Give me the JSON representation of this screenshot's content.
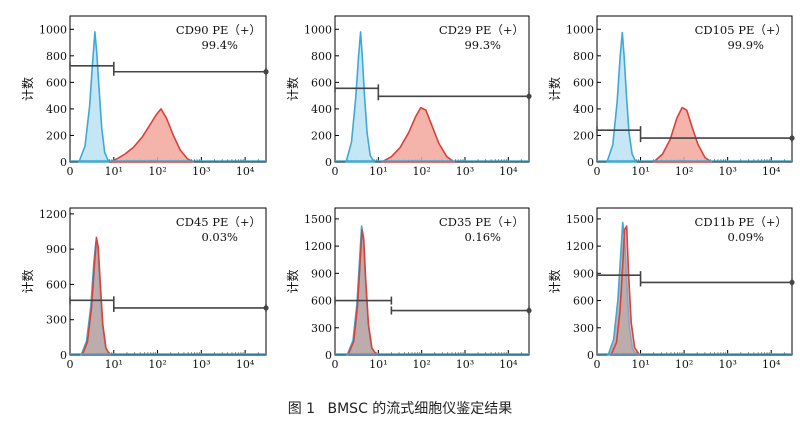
{
  "caption": {
    "fig_label": "图 1",
    "text": "BMSC 的流式细胞仪鉴定结果"
  },
  "colors": {
    "isotype_line": "#3fa9d6",
    "isotype_fill": "#bfe3f4",
    "positive_line": "#d9413a",
    "positive_fill": "#f2a79d",
    "overlay_fill": "#b8a7a7",
    "gate": "#444444",
    "axis": "#000000"
  },
  "chart_data": [
    {
      "type": "area",
      "title": "CD90 PE（+）",
      "percent": "99.4%",
      "ylabel": "计数",
      "yticks": [
        0,
        200,
        400,
        600,
        800,
        1000
      ],
      "ylim": [
        0,
        1100
      ],
      "xscale": "log",
      "xlim": [
        1,
        30000
      ],
      "xticks": [
        {
          "v": 1,
          "t": "0"
        },
        {
          "v": 10,
          "t": "10¹"
        },
        {
          "v": 100,
          "t": "10²"
        },
        {
          "v": 1000,
          "t": "10³"
        },
        {
          "v": 10000,
          "t": "10⁴"
        }
      ],
      "mode": "separate",
      "series": [
        {
          "role": "isotype",
          "x": [
            1.6,
            2.2,
            2.8,
            3.3,
            3.7,
            4.1,
            4.6,
            5.3,
            6.2,
            7.5,
            9
          ],
          "y": [
            0,
            120,
            420,
            760,
            980,
            820,
            560,
            260,
            70,
            10,
            0
          ]
        },
        {
          "role": "positive",
          "x": [
            8,
            12,
            18,
            28,
            45,
            70,
            95,
            120,
            160,
            230,
            330,
            480,
            650
          ],
          "y": [
            0,
            25,
            60,
            110,
            190,
            290,
            360,
            400,
            330,
            200,
            90,
            25,
            0
          ]
        }
      ],
      "gate_low": {
        "x1": 1,
        "x2": 10,
        "y": 725
      },
      "gate_high": {
        "x1": 10,
        "x2": 30000,
        "y": 680
      }
    },
    {
      "type": "area",
      "title": "CD29 PE（+）",
      "percent": "99.3%",
      "ylabel": "计数",
      "yticks": [
        0,
        200,
        400,
        600,
        800,
        1000
      ],
      "ylim": [
        0,
        1100
      ],
      "xscale": "log",
      "xlim": [
        1,
        30000
      ],
      "xticks": [
        {
          "v": 1,
          "t": "0"
        },
        {
          "v": 10,
          "t": "10¹"
        },
        {
          "v": 100,
          "t": "10²"
        },
        {
          "v": 1000,
          "t": "10³"
        },
        {
          "v": 10000,
          "t": "10⁴"
        }
      ],
      "mode": "separate",
      "series": [
        {
          "role": "isotype",
          "x": [
            1.8,
            2.4,
            3.0,
            3.5,
            3.9,
            4.3,
            4.8,
            5.5,
            6.5,
            8
          ],
          "y": [
            0,
            150,
            480,
            800,
            980,
            780,
            500,
            220,
            50,
            0
          ]
        },
        {
          "role": "positive",
          "x": [
            12,
            20,
            32,
            50,
            72,
            95,
            125,
            170,
            250,
            380,
            560
          ],
          "y": [
            0,
            40,
            110,
            220,
            340,
            410,
            390,
            280,
            140,
            40,
            0
          ]
        }
      ],
      "gate_low": {
        "x1": 1,
        "x2": 10,
        "y": 555
      },
      "gate_high": {
        "x1": 10,
        "x2": 30000,
        "y": 495
      }
    },
    {
      "type": "area",
      "title": "CD105 PE（+）",
      "percent": "99.9%",
      "ylabel": "计数",
      "yticks": [
        0,
        200,
        400,
        600,
        800,
        1000
      ],
      "ylim": [
        0,
        1100
      ],
      "xscale": "log",
      "xlim": [
        1,
        30000
      ],
      "xticks": [
        {
          "v": 1,
          "t": "0"
        },
        {
          "v": 10,
          "t": "10¹"
        },
        {
          "v": 100,
          "t": "10²"
        },
        {
          "v": 1000,
          "t": "10³"
        },
        {
          "v": 10000,
          "t": "10⁴"
        }
      ],
      "mode": "separate",
      "series": [
        {
          "role": "isotype",
          "x": [
            1.7,
            2.3,
            2.9,
            3.4,
            3.8,
            4.2,
            4.7,
            5.4,
            6.4,
            7.8
          ],
          "y": [
            0,
            130,
            450,
            790,
            975,
            800,
            520,
            230,
            60,
            0
          ]
        },
        {
          "role": "positive",
          "x": [
            20,
            32,
            48,
            68,
            90,
            115,
            150,
            210,
            300,
            420
          ],
          "y": [
            0,
            60,
            170,
            330,
            410,
            390,
            270,
            130,
            35,
            0
          ]
        }
      ],
      "gate_low": {
        "x1": 1,
        "x2": 10,
        "y": 240
      },
      "gate_high": {
        "x1": 10,
        "x2": 30000,
        "y": 180
      }
    },
    {
      "type": "area",
      "title": "CD45 PE（+）",
      "percent": "0.03%",
      "ylabel": "计数",
      "yticks": [
        0,
        300,
        600,
        900,
        1200
      ],
      "ylim": [
        0,
        1250
      ],
      "xscale": "log",
      "xlim": [
        1,
        30000
      ],
      "xticks": [
        {
          "v": 1,
          "t": "0"
        },
        {
          "v": 10,
          "t": "10¹"
        },
        {
          "v": 100,
          "t": "10²"
        },
        {
          "v": 1000,
          "t": "10³"
        },
        {
          "v": 10000,
          "t": "10⁴"
        }
      ],
      "mode": "overlay",
      "series": [
        {
          "role": "isotype",
          "x": [
            1.8,
            2.4,
            3.0,
            3.5,
            3.9,
            4.3,
            4.8,
            5.5,
            6.5,
            8
          ],
          "y": [
            0,
            120,
            420,
            780,
            960,
            900,
            600,
            250,
            60,
            0
          ]
        },
        {
          "role": "positive",
          "x": [
            1.9,
            2.5,
            3.1,
            3.6,
            4.0,
            4.4,
            4.9,
            5.6,
            6.6,
            8.2
          ],
          "y": [
            0,
            110,
            400,
            760,
            1000,
            920,
            620,
            260,
            60,
            0
          ]
        }
      ],
      "gate_low": {
        "x1": 1,
        "x2": 10,
        "y": 465
      },
      "gate_high": {
        "x1": 10,
        "x2": 30000,
        "y": 400
      }
    },
    {
      "type": "area",
      "title": "CD35 PE（+）",
      "percent": "0.16%",
      "ylabel": "计数",
      "yticks": [
        0,
        300,
        600,
        900,
        1200,
        1500
      ],
      "ylim": [
        0,
        1620
      ],
      "xscale": "log",
      "xlim": [
        1,
        30000
      ],
      "xticks": [
        {
          "v": 1,
          "t": "0"
        },
        {
          "v": 10,
          "t": "10¹"
        },
        {
          "v": 100,
          "t": "10²"
        },
        {
          "v": 1000,
          "t": "10³"
        },
        {
          "v": 10000,
          "t": "10⁴"
        }
      ],
      "mode": "overlay",
      "series": [
        {
          "role": "isotype",
          "x": [
            1.9,
            2.6,
            3.2,
            3.7,
            4.1,
            4.5,
            5.0,
            5.8,
            7,
            9
          ],
          "y": [
            0,
            160,
            560,
            1050,
            1420,
            1300,
            850,
            350,
            80,
            0
          ]
        },
        {
          "role": "positive",
          "x": [
            2.0,
            2.7,
            3.3,
            3.8,
            4.2,
            4.6,
            5.1,
            5.9,
            7.1,
            9.2
          ],
          "y": [
            0,
            150,
            540,
            1020,
            1380,
            1280,
            830,
            340,
            75,
            0
          ]
        }
      ],
      "gate_low": {
        "x1": 1,
        "x2": 20,
        "y": 600
      },
      "gate_high": {
        "x1": 20,
        "x2": 30000,
        "y": 490
      }
    },
    {
      "type": "area",
      "title": "CD11b PE（+）",
      "percent": "0.09%",
      "ylabel": "计数",
      "yticks": [
        0,
        300,
        600,
        900,
        1200,
        1500
      ],
      "ylim": [
        0,
        1620
      ],
      "xscale": "log",
      "xlim": [
        1,
        30000
      ],
      "xticks": [
        {
          "v": 1,
          "t": "0"
        },
        {
          "v": 10,
          "t": "10¹"
        },
        {
          "v": 100,
          "t": "10²"
        },
        {
          "v": 1000,
          "t": "10³"
        },
        {
          "v": 10000,
          "t": "10⁴"
        }
      ],
      "mode": "overlay",
      "series": [
        {
          "role": "isotype",
          "x": [
            1.8,
            2.4,
            3.0,
            3.5,
            3.9,
            4.3,
            4.8,
            5.5,
            6.5,
            8
          ],
          "y": [
            0,
            170,
            600,
            1100,
            1460,
            1280,
            800,
            320,
            70,
            0
          ]
        },
        {
          "role": "positive",
          "x": [
            2.1,
            2.8,
            3.4,
            3.9,
            4.3,
            4.8,
            5.3,
            6.1,
            7.3,
            9.5
          ],
          "y": [
            0,
            140,
            500,
            980,
            1380,
            1420,
            900,
            360,
            80,
            0
          ]
        }
      ],
      "gate_low": {
        "x1": 1,
        "x2": 10,
        "y": 880
      },
      "gate_high": {
        "x1": 10,
        "x2": 30000,
        "y": 800
      }
    }
  ]
}
